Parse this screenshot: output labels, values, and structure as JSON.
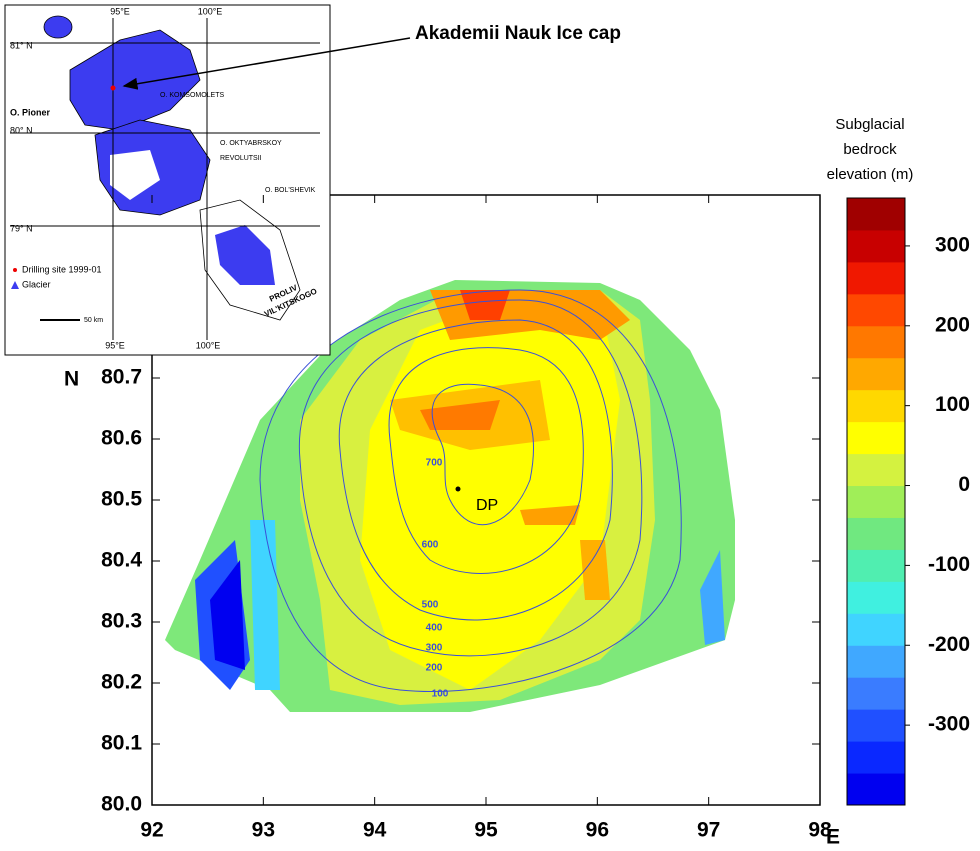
{
  "map": {
    "annotation": "Akademii Nauk Ice cap",
    "x_axis_label": "E",
    "y_axis_label": "N",
    "xlim": [
      92,
      98
    ],
    "xticks": [
      92,
      93,
      94,
      95,
      96,
      97,
      98
    ],
    "ylim": [
      80,
      81
    ],
    "yticks": [
      {
        "value": 80,
        "label": "80.0"
      },
      {
        "value": 80.1,
        "label": "80.1"
      },
      {
        "value": 80.2,
        "label": "80.2"
      },
      {
        "value": 80.3,
        "label": "80.3"
      },
      {
        "value": 80.4,
        "label": "80.4"
      },
      {
        "value": 80.5,
        "label": "80.5"
      },
      {
        "value": 80.6,
        "label": "80.6"
      },
      {
        "value": 80.7,
        "label": "80.7"
      }
    ],
    "site_label": "DP",
    "contour_labels": [
      700,
      600,
      500,
      400,
      300,
      200,
      100
    ],
    "colorbar": {
      "title_lines": [
        "Subglacial",
        "bedrock",
        "elevation (m)"
      ],
      "lim": [
        -400,
        360
      ],
      "ticks": [
        300,
        200,
        100,
        0,
        -100,
        -200,
        -300
      ],
      "colors": [
        "#0000f0",
        "#0a28ff",
        "#2050ff",
        "#3a7cff",
        "#40a8ff",
        "#40d4ff",
        "#40f0e0",
        "#50eeb0",
        "#70e880",
        "#a0ee58",
        "#d4f240",
        "#ffff00",
        "#ffd800",
        "#ffa800",
        "#ff7800",
        "#ff4800",
        "#f01800",
        "#c80000",
        "#a00000"
      ]
    },
    "inset": {
      "top_lon_labels": [
        "95°E",
        "100°E"
      ],
      "bottom_lon_labels": [
        "95°E",
        "100°E"
      ],
      "lat_labels": [
        "81° N",
        "80° N",
        "79° N"
      ],
      "place_labels": [
        "O. Pioner",
        "O. KOMSOMOLETS",
        "O. OKTYABRSKOY",
        "REVOLUTSII",
        "O. BOL'SHEVIK",
        "PROLIV",
        "VIL'KITSKOGO"
      ],
      "legend": [
        "Drilling site 1999-01",
        "Glacier"
      ],
      "scale_label": "50 km"
    }
  }
}
